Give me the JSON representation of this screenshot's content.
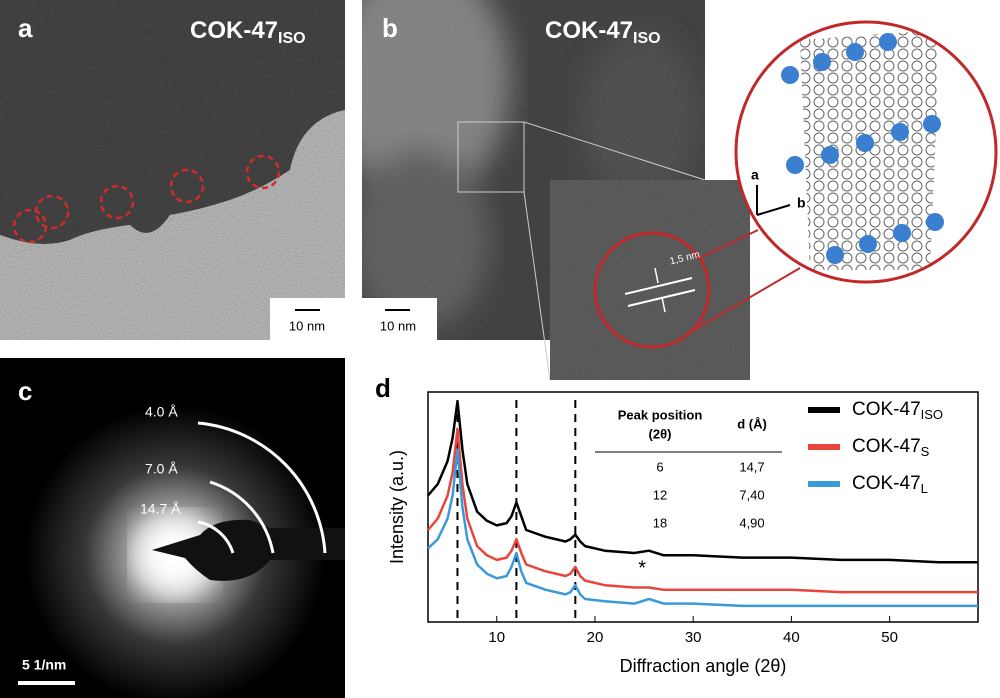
{
  "panels": {
    "a": {
      "label": "a",
      "title": "COK-47",
      "title_sub": "ISO",
      "scale_bar": "10 nm"
    },
    "b": {
      "label": "b",
      "title": "COK-47",
      "title_sub": "ISO",
      "scale_bar": "10 nm",
      "spacing": "1,5 nm",
      "axis_a": "a",
      "axis_b": "b"
    },
    "c": {
      "label": "c",
      "rings": [
        "4.0 Å",
        "7.0 Å",
        "14.7 Å"
      ],
      "scale_bar": "5 1/nm"
    }
  },
  "chart_data": {
    "type": "line",
    "label": "d",
    "xlabel": "Diffraction angle (2θ)",
    "ylabel": "Intensity (a.u.)",
    "x": [
      3,
      4,
      5,
      5.5,
      6,
      6.5,
      7,
      8,
      9,
      10,
      11,
      11.5,
      12,
      12.5,
      13,
      15,
      17,
      17.5,
      18,
      18.5,
      19,
      21,
      24,
      25.5,
      27,
      30,
      35,
      40,
      45,
      50,
      55,
      59
    ],
    "series": [
      {
        "name": "COK-47",
        "name_sub": "ISO",
        "color": "#000000",
        "values": [
          55,
          60,
          70,
          80,
          96,
          75,
          60,
          48,
          44,
          42,
          43,
          46,
          52,
          46,
          40,
          37,
          35,
          36,
          38,
          35,
          33,
          31,
          30,
          31,
          29,
          29,
          28,
          28,
          27,
          27,
          26,
          26
        ]
      },
      {
        "name": "COK-47",
        "name_sub": "S",
        "color": "#e8453c",
        "values": [
          40,
          45,
          55,
          65,
          84,
          60,
          45,
          33,
          29,
          27,
          28,
          31,
          36,
          30,
          25,
          22,
          20,
          21,
          24,
          20,
          18,
          16,
          15,
          15,
          14,
          14,
          14,
          14,
          13,
          13,
          13,
          13
        ]
      },
      {
        "name": "COK-47",
        "name_sub": "L",
        "color": "#3a9ad9",
        "values": [
          32,
          36,
          45,
          55,
          75,
          50,
          36,
          25,
          21,
          19,
          20,
          24,
          30,
          22,
          17,
          14,
          12,
          13,
          16,
          12,
          10,
          9,
          8,
          10,
          8,
          8,
          7,
          7,
          7,
          7,
          7,
          7
        ]
      }
    ],
    "reference_lines": [
      6,
      12,
      18
    ],
    "annotation": {
      "text": "*",
      "x": 24.8,
      "y": 23
    },
    "xlim": [
      3,
      59
    ],
    "xticks": [
      10,
      20,
      30,
      40,
      50
    ],
    "ylim": [
      0,
      100
    ],
    "table": {
      "header": [
        "Peak position",
        "(2θ)",
        "d (Å)"
      ],
      "rows": [
        [
          "6",
          "14,7"
        ],
        [
          "12",
          "7,40"
        ],
        [
          "18",
          "4,90"
        ]
      ]
    }
  }
}
